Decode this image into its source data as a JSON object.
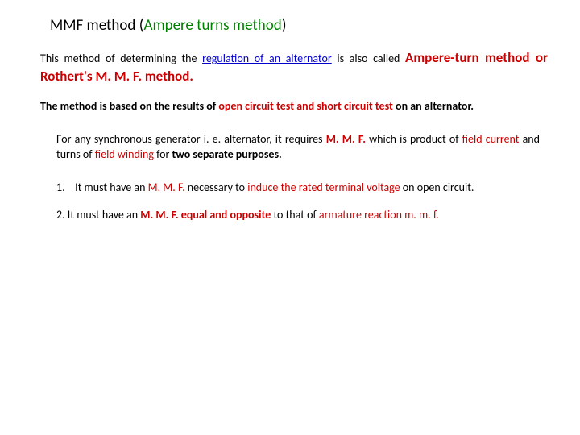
{
  "colors": {
    "green": "#008000",
    "blue": "#0000cc",
    "red": "#cc0000",
    "black": "#000000",
    "background": "#ffffff"
  },
  "typography": {
    "title_fontsize": 19,
    "body_fontsize": 14,
    "big_fontsize": 17,
    "font_family": "Calibri"
  },
  "title": {
    "t1": "MMF method (",
    "t2": "Ampere turns method",
    "t3": ")"
  },
  "p1": {
    "a": "This method of determining the ",
    "b": "regulation of an alternator",
    "c": " is also called ",
    "d": "Ampere-turn method or Rothert's M. M. F. method."
  },
  "p2": {
    "a": "The method is based on the results of ",
    "b": "open circuit test and short circuit test",
    "c": " on an alternator."
  },
  "p3": {
    "a": "For any synchronous generator i. e. alternator, it requires ",
    "b": "M. M. F.",
    "c": " which is product of ",
    "d": "field current",
    "e": "   and turns of ",
    "f": "field winding",
    "g": " for ",
    "h": "two separate purposes."
  },
  "n1": {
    "num": "1.",
    "a": "It must have an ",
    "b": "M. M. F.",
    "c": " necessary to ",
    "d": "induce the rated terminal voltage",
    "e": " on open circuit."
  },
  "n2": {
    "num": "2.",
    "a": " It must have an ",
    "b": "M. M. F. equal and opposite",
    "c": " to that of ",
    "d": "armature reaction m. m. f."
  }
}
